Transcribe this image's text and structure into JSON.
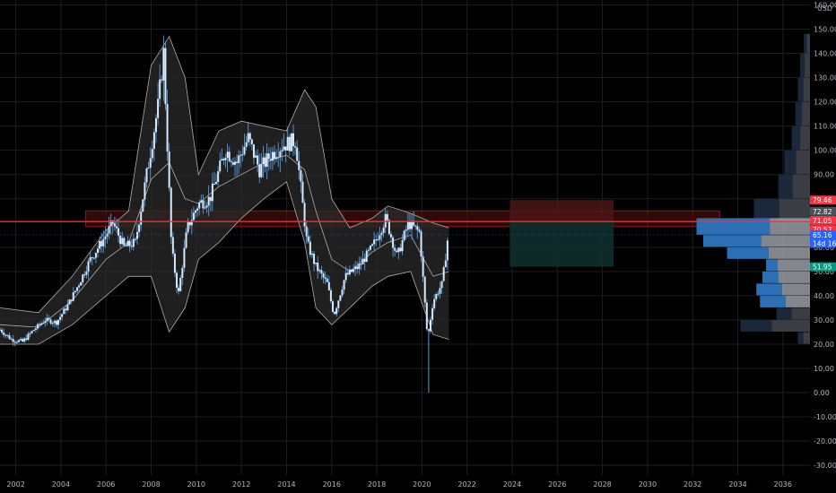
{
  "currency": "USD",
  "colors": {
    "background": "#000000",
    "grid": "#1c1e24",
    "candle_body": "#d6e9ff",
    "candle_wick": "#5b9bd5",
    "band_fill": "#2a2a2a",
    "band_line": "#c8c8c8",
    "resistance_line": "#ff2b2b",
    "zone_fill": "#5a1010",
    "stop_zone": "#4a1616",
    "target_zone": "#0e2e2c",
    "vp_blue": "#2d6fb4",
    "vp_grey": "#9a9ea6",
    "vp_dark": "#1b2a3d",
    "vp_dark_grey": "#3a3d44",
    "badge_red": "#f23645",
    "badge_blue": "#2962ff",
    "badge_teal": "#089981",
    "badge_grey": "#4b4f59"
  },
  "chart_data": {
    "type": "candlestick",
    "xlim": [
      2001.3,
      2037.2
    ],
    "ylim": [
      -34,
      162
    ],
    "x_ticks": [
      "2002",
      "2004",
      "2006",
      "2008",
      "2010",
      "2012",
      "2014",
      "2016",
      "2018",
      "2020",
      "2022",
      "2024",
      "2026",
      "2028",
      "2030",
      "2032",
      "2034",
      "2036"
    ],
    "y_ticks": [
      "160.00",
      "150.00",
      "140.00",
      "130.00",
      "120.00",
      "110.00",
      "100.00",
      "90.00",
      "80.00",
      "60.00",
      "50.00",
      "40.00",
      "30.00",
      "20.00",
      "10.00",
      "0.00",
      "-10.00",
      "-20.00",
      "-30.00"
    ],
    "price_path": [
      [
        2001.3,
        26
      ],
      [
        2001.8,
        22
      ],
      [
        2002.3,
        21
      ],
      [
        2002.8,
        26
      ],
      [
        2003.3,
        30
      ],
      [
        2003.8,
        29
      ],
      [
        2004.3,
        36
      ],
      [
        2004.8,
        45
      ],
      [
        2005.3,
        55
      ],
      [
        2005.8,
        62
      ],
      [
        2006.3,
        70
      ],
      [
        2006.8,
        60
      ],
      [
        2007.3,
        62
      ],
      [
        2007.8,
        90
      ],
      [
        2008.3,
        118
      ],
      [
        2008.55,
        140
      ],
      [
        2008.9,
        60
      ],
      [
        2009.2,
        40
      ],
      [
        2009.6,
        68
      ],
      [
        2010.1,
        78
      ],
      [
        2010.6,
        80
      ],
      [
        2011.3,
        100
      ],
      [
        2011.8,
        95
      ],
      [
        2012.3,
        105
      ],
      [
        2012.8,
        92
      ],
      [
        2013.3,
        98
      ],
      [
        2013.8,
        102
      ],
      [
        2014.4,
        104
      ],
      [
        2014.9,
        62
      ],
      [
        2015.3,
        52
      ],
      [
        2015.8,
        45
      ],
      [
        2016.1,
        32
      ],
      [
        2016.6,
        48
      ],
      [
        2017.2,
        52
      ],
      [
        2017.8,
        60
      ],
      [
        2018.4,
        72
      ],
      [
        2018.9,
        56
      ],
      [
        2019.4,
        70
      ],
      [
        2019.9,
        66
      ],
      [
        2020.25,
        22
      ],
      [
        2020.5,
        38
      ],
      [
        2020.9,
        45
      ],
      [
        2021.2,
        68
      ]
    ],
    "spike_low": {
      "x": 2020.3,
      "y": 0
    },
    "bollinger": {
      "upper": [
        [
          2001.3,
          35
        ],
        [
          2003,
          33
        ],
        [
          2004.5,
          48
        ],
        [
          2006,
          67
        ],
        [
          2007,
          75
        ],
        [
          2008,
          135
        ],
        [
          2008.8,
          147
        ],
        [
          2009.5,
          130
        ],
        [
          2010.1,
          90
        ],
        [
          2011,
          108
        ],
        [
          2012,
          112
        ],
        [
          2013,
          110
        ],
        [
          2014,
          108
        ],
        [
          2014.8,
          125
        ],
        [
          2015.3,
          118
        ],
        [
          2016,
          80
        ],
        [
          2016.8,
          68
        ],
        [
          2017.8,
          72
        ],
        [
          2018.5,
          77
        ],
        [
          2019.5,
          74
        ],
        [
          2020.5,
          70
        ],
        [
          2021.2,
          68
        ]
      ],
      "middle": [
        [
          2001.3,
          28
        ],
        [
          2003,
          27
        ],
        [
          2004.5,
          38
        ],
        [
          2006,
          55
        ],
        [
          2007,
          62
        ],
        [
          2008,
          88
        ],
        [
          2008.8,
          95
        ],
        [
          2009.5,
          80
        ],
        [
          2010.1,
          78
        ],
        [
          2011,
          85
        ],
        [
          2012,
          90
        ],
        [
          2013,
          95
        ],
        [
          2014,
          98
        ],
        [
          2014.8,
          92
        ],
        [
          2015.3,
          75
        ],
        [
          2016,
          55
        ],
        [
          2016.8,
          50
        ],
        [
          2017.8,
          58
        ],
        [
          2018.5,
          62
        ],
        [
          2019.5,
          65
        ],
        [
          2020.5,
          48
        ],
        [
          2021.2,
          50
        ]
      ],
      "lower": [
        [
          2001.3,
          20
        ],
        [
          2003,
          20
        ],
        [
          2004.5,
          28
        ],
        [
          2006,
          40
        ],
        [
          2007,
          48
        ],
        [
          2008,
          48
        ],
        [
          2008.8,
          25
        ],
        [
          2009.5,
          35
        ],
        [
          2010.1,
          55
        ],
        [
          2011,
          62
        ],
        [
          2012,
          72
        ],
        [
          2013,
          80
        ],
        [
          2014,
          87
        ],
        [
          2014.8,
          62
        ],
        [
          2015.3,
          35
        ],
        [
          2016,
          28
        ],
        [
          2016.8,
          35
        ],
        [
          2017.8,
          44
        ],
        [
          2018.5,
          48
        ],
        [
          2019.5,
          50
        ],
        [
          2020.5,
          24
        ],
        [
          2021.2,
          22
        ]
      ]
    },
    "resistance_zone": {
      "x_from": 2005.1,
      "x_to": 2033.2,
      "y_from": 68.5,
      "y_to": 75
    },
    "resistance_line": {
      "y": 70.57
    },
    "position": {
      "x_from": 2023.9,
      "x_to": 2028.5,
      "entry": 70.57,
      "stop": 79.46,
      "target": 51.95
    },
    "volume_profile": [
      {
        "low": 140,
        "high": 148,
        "total": 1.0,
        "up": 0.0
      },
      {
        "low": 130,
        "high": 140,
        "total": 1.6,
        "up": 0.0
      },
      {
        "low": 120,
        "high": 130,
        "total": 2.0,
        "up": 0.0
      },
      {
        "low": 110,
        "high": 120,
        "total": 2.4,
        "up": 0.0
      },
      {
        "low": 100,
        "high": 110,
        "total": 3.0,
        "up": 0.0
      },
      {
        "low": 90,
        "high": 100,
        "total": 4.2,
        "up": 0.0
      },
      {
        "low": 80,
        "high": 90,
        "total": 5.2,
        "up": 0.0
      },
      {
        "low": 70,
        "high": 80,
        "total": 9.2,
        "up": 0.0
      },
      {
        "low": 65,
        "high": 72,
        "total": 18.6,
        "up": 12.0
      },
      {
        "low": 60,
        "high": 65,
        "total": 17.5,
        "up": 9.5
      },
      {
        "low": 55,
        "high": 60,
        "total": 13.6,
        "up": 6.8
      },
      {
        "low": 50,
        "high": 55,
        "total": 7.2,
        "up": 1.9
      },
      {
        "low": 45,
        "high": 50,
        "total": 7.8,
        "up": 2.6
      },
      {
        "low": 40,
        "high": 45,
        "total": 8.8,
        "up": 4.2
      },
      {
        "low": 35,
        "high": 40,
        "total": 8.2,
        "up": 4.2
      },
      {
        "low": 30,
        "high": 35,
        "total": 5.5,
        "up": 0.0
      },
      {
        "low": 25,
        "high": 30,
        "total": 11.4,
        "up": 0.0
      },
      {
        "low": 20,
        "high": 25,
        "total": 2.0,
        "up": 0.0
      }
    ],
    "price_badges": [
      {
        "label": "79.46",
        "y": 79.46,
        "color": "badge_red"
      },
      {
        "label": "72.82",
        "y": 74.8,
        "color": "badge_grey"
      },
      {
        "label": "71.05",
        "y": 71.05,
        "color": "badge_red"
      },
      {
        "label": "70.57",
        "y": 67.3,
        "color": "badge_red"
      },
      {
        "label": "65.16",
        "y": 65.16,
        "color": "badge_blue"
      },
      {
        "label": "14d 16h",
        "y": 61.6,
        "color": "badge_blue"
      },
      {
        "label": "51.95",
        "y": 51.95,
        "color": "badge_teal"
      }
    ]
  }
}
